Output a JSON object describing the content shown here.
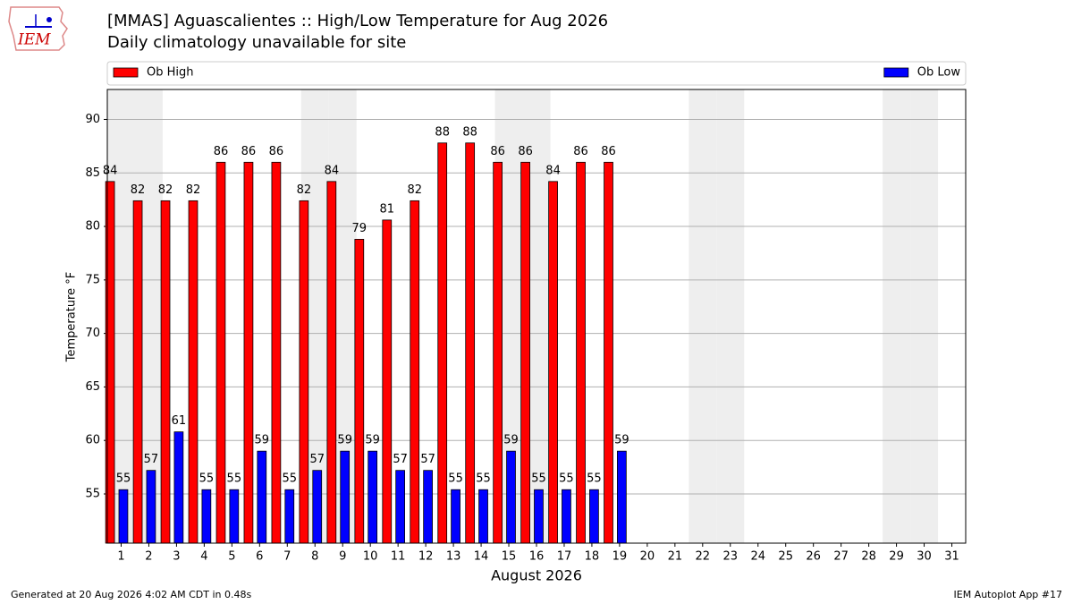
{
  "chart_data": {
    "type": "bar",
    "title": "[MMAS] Aguascalientes :: High/Low Temperature for Aug 2026",
    "subtitle": "Daily climatology unavailable for site",
    "xlabel": "August 2026",
    "ylabel": "Temperature °F",
    "x": [
      1,
      2,
      3,
      4,
      5,
      6,
      7,
      8,
      9,
      10,
      11,
      12,
      13,
      14,
      15,
      16,
      17,
      18,
      19,
      20,
      21,
      22,
      23,
      24,
      25,
      26,
      27,
      28,
      29,
      30,
      31
    ],
    "xlim": [
      0.5,
      31.5
    ],
    "xticks": [
      1,
      2,
      3,
      4,
      5,
      6,
      7,
      8,
      9,
      10,
      11,
      12,
      13,
      14,
      15,
      16,
      17,
      18,
      19,
      20,
      21,
      22,
      23,
      24,
      25,
      26,
      27,
      28,
      29,
      30,
      31
    ],
    "ylim": [
      50.4,
      92.8
    ],
    "yticks": [
      55,
      60,
      65,
      70,
      75,
      80,
      85,
      90
    ],
    "grid": true,
    "legend": "top",
    "shaded_days": [
      1,
      2,
      8,
      9,
      15,
      16,
      22,
      23,
      29,
      30
    ],
    "shade_color": "#eeeeee",
    "series": [
      {
        "name": "Ob High",
        "color": "#ff0000",
        "values": [
          84.2,
          82.4,
          82.4,
          82.4,
          86,
          86,
          86,
          82.4,
          84.2,
          78.8,
          80.6,
          82.4,
          87.8,
          87.8,
          86,
          86,
          84.2,
          86,
          86,
          null,
          null,
          null,
          null,
          null,
          null,
          null,
          null,
          null,
          null,
          null,
          null
        ],
        "value_labels": [
          "84",
          "82",
          "82",
          "82",
          "86",
          "86",
          "86",
          "82",
          "84",
          "79",
          "81",
          "82",
          "88",
          "88",
          "86",
          "86",
          "84",
          "86",
          "86",
          null,
          null,
          null,
          null,
          null,
          null,
          null,
          null,
          null,
          null,
          null,
          null
        ]
      },
      {
        "name": "Ob Low",
        "color": "#0000ff",
        "values": [
          55.4,
          57.2,
          60.8,
          55.4,
          55.4,
          59,
          55.4,
          57.2,
          59,
          59,
          57.2,
          57.2,
          55.4,
          55.4,
          59,
          55.4,
          55.4,
          55.4,
          59,
          null,
          null,
          null,
          null,
          null,
          null,
          null,
          null,
          null,
          null,
          null,
          null
        ],
        "value_labels": [
          "55",
          "57",
          "61",
          "55",
          "55",
          "59",
          "55",
          "57",
          "59",
          "59",
          "57",
          "57",
          "55",
          "55",
          "59",
          "55",
          "55",
          "55",
          "59",
          null,
          null,
          null,
          null,
          null,
          null,
          null,
          null,
          null,
          null,
          null,
          null
        ]
      }
    ]
  },
  "footer": {
    "left": "Generated at 20 Aug 2026 4:02 AM CDT in 0.48s",
    "right": "IEM Autoplot App #17"
  },
  "logo": "IEM"
}
